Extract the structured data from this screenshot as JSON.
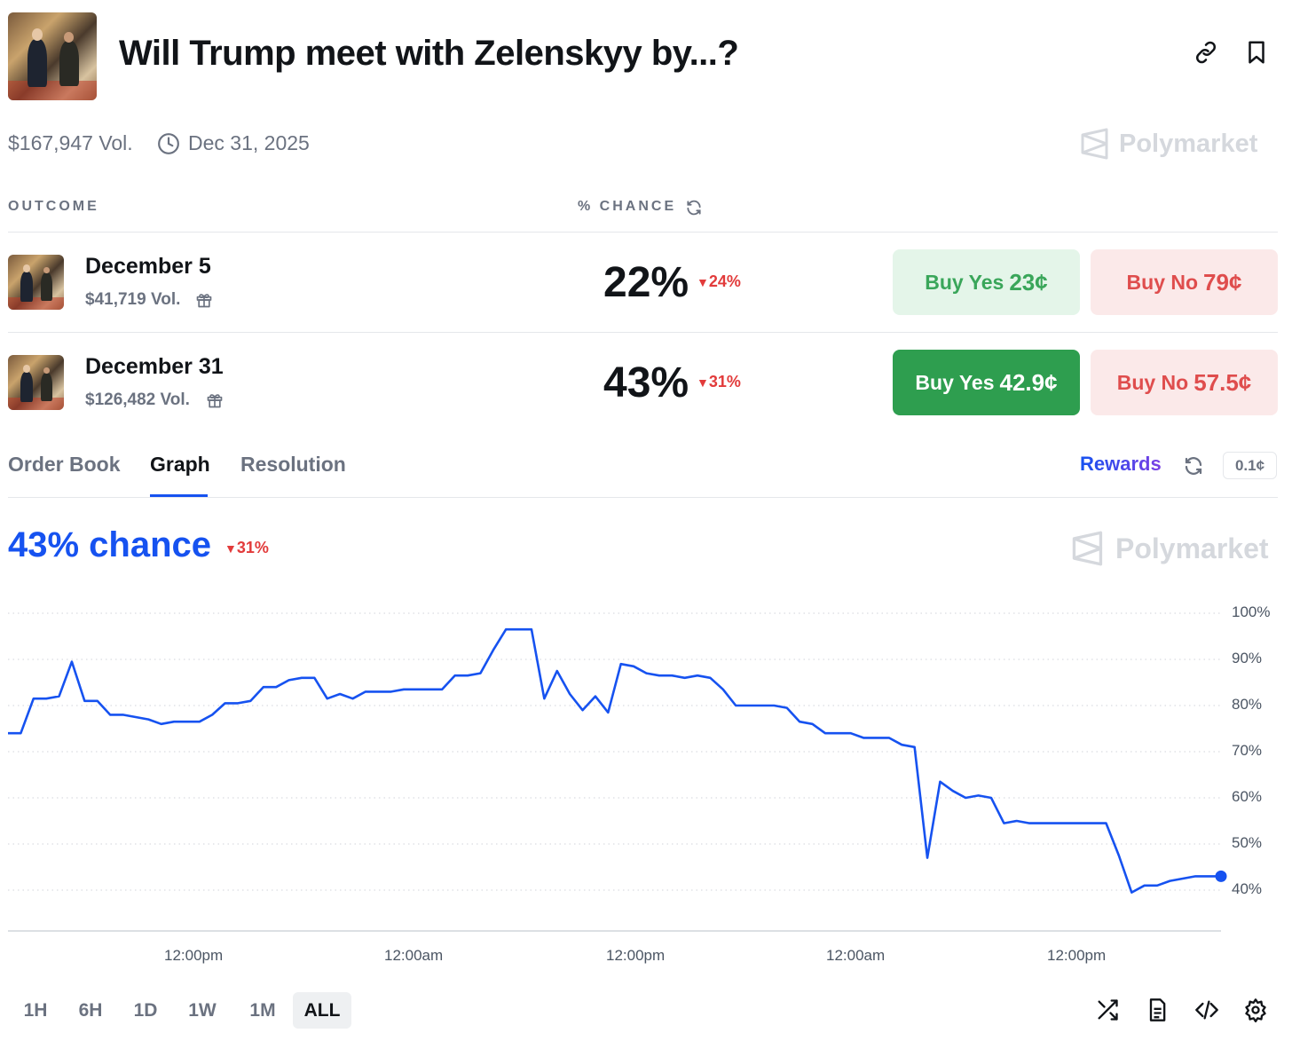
{
  "header": {
    "title": "Will Trump meet with Zelenskyy by...?",
    "volume": "$167,947 Vol.",
    "end_date": "Dec 31, 2025",
    "brand": "Polymarket",
    "icons": [
      "link-icon",
      "bookmark-icon",
      "clock-icon",
      "polymarket-logo"
    ]
  },
  "table": {
    "col_outcome": "OUTCOME",
    "col_chance": "% CHANCE",
    "rows": [
      {
        "name": "December 5",
        "volume": "$41,719 Vol.",
        "chance": "22%",
        "delta": "24%",
        "delta_dir": "down",
        "buy_yes_label": "Buy Yes",
        "buy_yes_price": "23¢",
        "buy_no_label": "Buy No",
        "buy_no_price": "79¢"
      },
      {
        "name": "December 31",
        "volume": "$126,482 Vol.",
        "chance": "43%",
        "delta": "31%",
        "delta_dir": "down",
        "buy_yes_label": "Buy Yes",
        "buy_yes_price": "42.9¢",
        "buy_no_label": "Buy No",
        "buy_no_price": "57.5¢"
      }
    ]
  },
  "tabs": {
    "items": [
      "Order Book",
      "Graph",
      "Resolution"
    ],
    "active": "Graph",
    "rewards": "Rewards",
    "tick_size": "0.1¢"
  },
  "graph": {
    "chance_text": "43% chance",
    "delta": "31%",
    "brand": "Polymarket",
    "ranges": [
      "1H",
      "6H",
      "1D",
      "1W",
      "1M",
      "ALL"
    ],
    "active_range": "ALL",
    "footer_icons": [
      "shuffle-icon",
      "document-icon",
      "code-icon",
      "settings-icon"
    ]
  },
  "colors": {
    "line": "#1652f0",
    "yes_dark": "#2e9e4f",
    "yes_light_text": "#3aa65a",
    "no_text": "#df4d4d",
    "down": "#e23b3b"
  },
  "chart_data": {
    "type": "line",
    "title": "",
    "xlabel": "",
    "ylabel": "",
    "ylim": [
      30,
      100
    ],
    "yticks": [
      "100%",
      "90%",
      "80%",
      "70%",
      "60%",
      "50%",
      "40%"
    ],
    "xticks": [
      "12:00pm",
      "12:00am",
      "12:00pm",
      "12:00am",
      "12:00pm"
    ],
    "grid": true,
    "series": [
      {
        "values": [
          74,
          74,
          81.5,
          81.5,
          82,
          89.5,
          81,
          81,
          78,
          78,
          77.5,
          77,
          76,
          76.5,
          76.5,
          76.5,
          78,
          80.5,
          80.5,
          81,
          84,
          84,
          85.5,
          86,
          86,
          81.5,
          82.5,
          81.5,
          83,
          83,
          83,
          83.5,
          83.5,
          83.5,
          83.5,
          86.5,
          86.5,
          87,
          92,
          96.5,
          96.5,
          96.5,
          81.5,
          87.5,
          82.5,
          79,
          82,
          78.5,
          89,
          88.5,
          87,
          86.5,
          86.5,
          86,
          86.5,
          86,
          83.5,
          80,
          80,
          80,
          80,
          79.5,
          76.5,
          76,
          74,
          74,
          74,
          73,
          73,
          73,
          71.5,
          71,
          47,
          63.5,
          61.5,
          60,
          60.5,
          60,
          54.5,
          55,
          54.5,
          54.5,
          54.5,
          54.5,
          54.5,
          54.5,
          54.5,
          47.5,
          39.5,
          41,
          41,
          42,
          42.5,
          43,
          43,
          43
        ]
      }
    ]
  }
}
